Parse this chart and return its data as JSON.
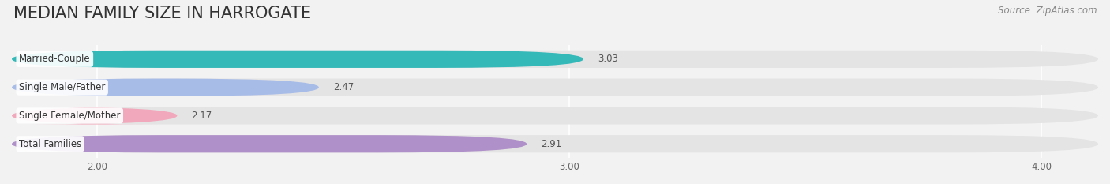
{
  "title": "MEDIAN FAMILY SIZE IN HARROGATE",
  "source": "Source: ZipAtlas.com",
  "categories": [
    "Married-Couple",
    "Single Male/Father",
    "Single Female/Mother",
    "Total Families"
  ],
  "values": [
    3.03,
    2.47,
    2.17,
    2.91
  ],
  "bar_colors": [
    "#35b8b8",
    "#a8bce8",
    "#f2a8bc",
    "#b090c8"
  ],
  "xlim_min": 1.82,
  "xlim_max": 4.12,
  "xticks": [
    2.0,
    3.0,
    4.0
  ],
  "xtick_labels": [
    "2.00",
    "3.00",
    "4.00"
  ],
  "bar_height": 0.62,
  "figsize": [
    14.06,
    2.33
  ],
  "dpi": 100,
  "bg_color": "#f2f2f2",
  "bar_bg_color": "#e4e4e4",
  "title_fontsize": 15,
  "label_fontsize": 8.5,
  "value_fontsize": 8.5,
  "tick_fontsize": 8.5,
  "source_fontsize": 8.5
}
